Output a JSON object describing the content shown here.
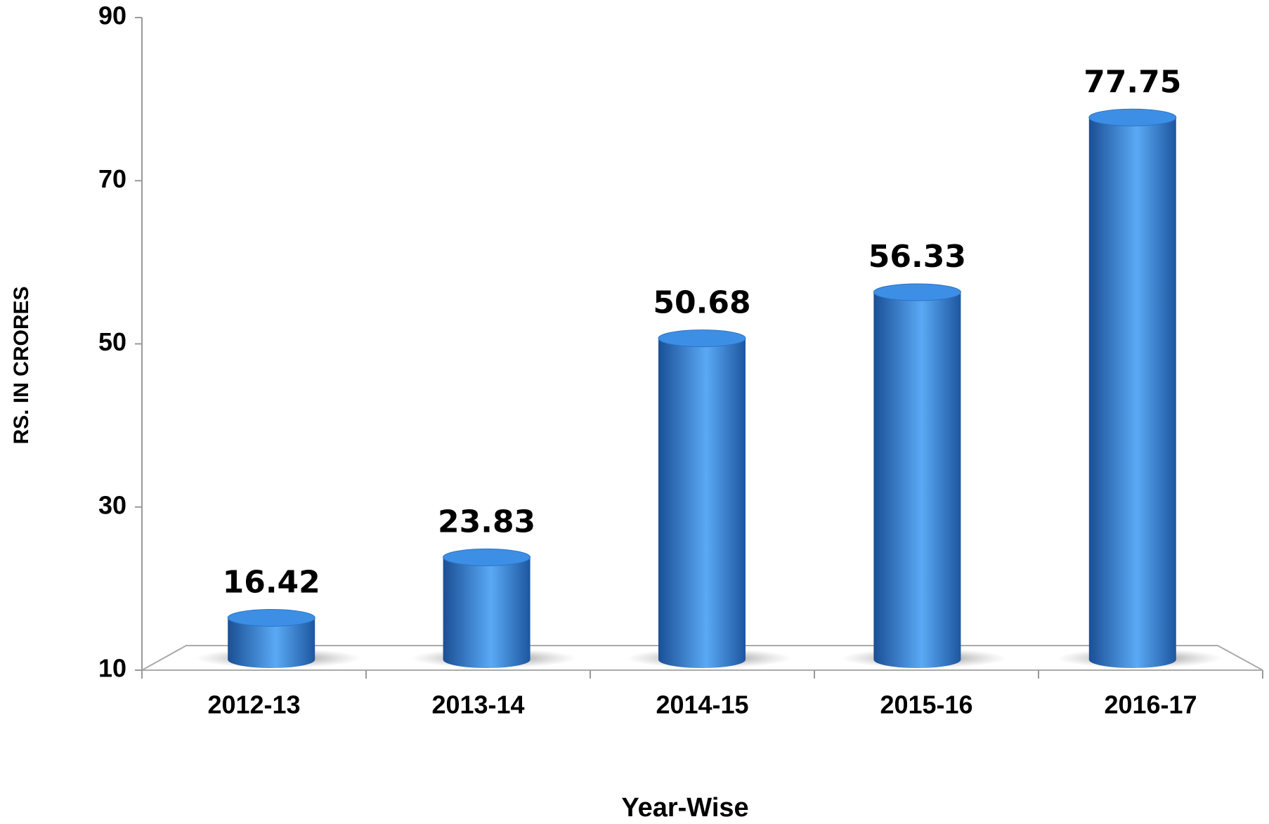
{
  "chart_data": {
    "type": "bar",
    "x_label": "Year-Wise",
    "y_label": "RS. IN CRORES",
    "categories": [
      "2012-13",
      "2013-14",
      "2014-15",
      "2015-16",
      "2016-17"
    ],
    "values": [
      16.42,
      23.83,
      50.68,
      56.33,
      77.75
    ],
    "color": "#2f7fd6",
    "ylim": [
      10,
      90
    ],
    "yticks": [
      10,
      30,
      50,
      70,
      90
    ],
    "grid": false
  }
}
